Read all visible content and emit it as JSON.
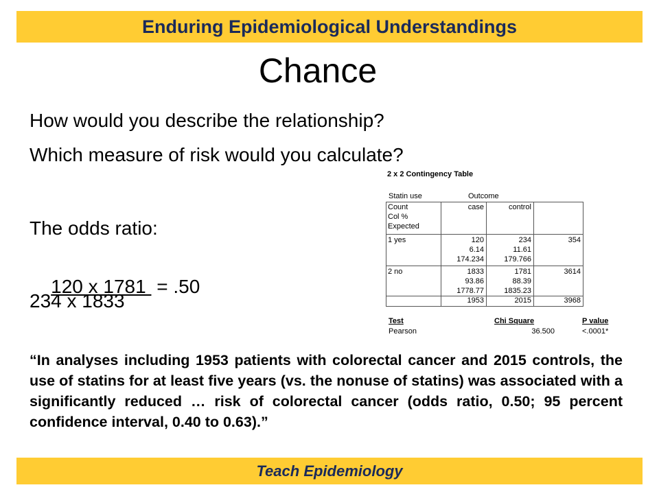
{
  "header": {
    "title": "Enduring Epidemiological Understandings"
  },
  "slide": {
    "title": "Chance",
    "questions": [
      "How would you describe the relationship?",
      "Which measure of risk would you calculate?"
    ],
    "odds": {
      "label": "The odds ratio:",
      "numerator": "120 x 1781 ",
      "result": "= .50",
      "denominator": "234 x 1833"
    },
    "quote": "“In analyses including 1953 patients with colorectal cancer and 2015 controls, the use of statins for at least five years (vs. the nonuse of statins) was associated with a significantly reduced … risk of colorectal cancer (odds ratio, 0.50; 95 percent confidence interval, 0.40 to 0.63).”"
  },
  "table": {
    "title": "2 x 2 Contingency Table",
    "row_var": "Statin use",
    "col_var": "Outcome",
    "stat_labels": [
      "Count",
      "Col %",
      "Expected"
    ],
    "columns": [
      "case",
      "control"
    ],
    "rows": [
      {
        "label": "1 yes",
        "cells": [
          [
            "120",
            "6.14",
            "174.234"
          ],
          [
            "234",
            "11.61",
            "179.766"
          ]
        ],
        "total": "354"
      },
      {
        "label": "2 no",
        "cells": [
          [
            "1833",
            "93.86",
            "1778.77"
          ],
          [
            "1781",
            "88.39",
            "1835.23"
          ]
        ],
        "total": "3614"
      }
    ],
    "totals": [
      "1953",
      "2015",
      "3968"
    ],
    "test": {
      "headers": [
        "Test",
        "Chi Square",
        "P value"
      ],
      "row": [
        "Pearson",
        "36.500",
        "<.0001*"
      ]
    }
  },
  "footer": {
    "title": "Teach Epidemiology"
  }
}
